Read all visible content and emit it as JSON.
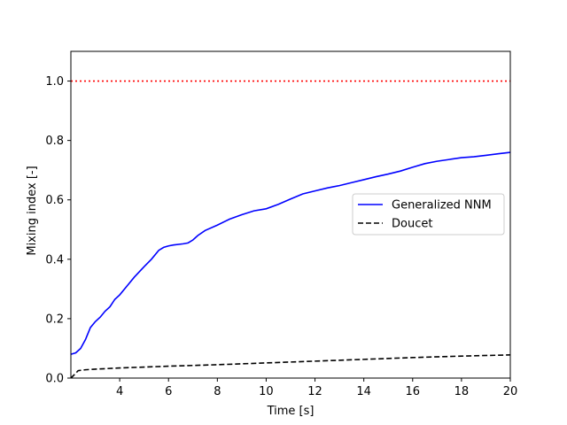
{
  "chart_data": {
    "type": "line",
    "title": "",
    "xlabel": "Time [s]",
    "ylabel": "Mixing index [-]",
    "xlim": [
      2,
      20
    ],
    "ylim": [
      0.0,
      1.1
    ],
    "xticks": [
      4,
      6,
      8,
      10,
      12,
      14,
      16,
      18,
      20
    ],
    "xtick_labels": [
      "4",
      "6",
      "8",
      "10",
      "12",
      "14",
      "16",
      "18",
      "20"
    ],
    "yticks": [
      0.0,
      0.2,
      0.4,
      0.6,
      0.8,
      1.0
    ],
    "ytick_labels": [
      "0.0",
      "0.2",
      "0.4",
      "0.6",
      "0.8",
      "1.0"
    ],
    "grid": false,
    "legend_position": "center-right",
    "series": [
      {
        "name": "Generalized NNM",
        "color": "#0000ff",
        "style": "solid",
        "x": [
          2.0,
          2.2,
          2.4,
          2.6,
          2.8,
          3.0,
          3.2,
          3.4,
          3.6,
          3.8,
          4.0,
          4.3,
          4.6,
          5.0,
          5.3,
          5.6,
          5.8,
          6.0,
          6.2,
          6.6,
          6.8,
          7.0,
          7.2,
          7.5,
          8.0,
          8.5,
          9.0,
          9.5,
          10.0,
          10.5,
          11.0,
          11.5,
          12.0,
          12.5,
          13.0,
          13.5,
          14.0,
          14.5,
          15.0,
          15.5,
          16.0,
          16.5,
          17.0,
          17.5,
          18.0,
          18.5,
          19.0,
          19.5,
          20.0
        ],
        "y": [
          0.08,
          0.085,
          0.1,
          0.13,
          0.17,
          0.19,
          0.205,
          0.225,
          0.24,
          0.265,
          0.28,
          0.31,
          0.34,
          0.375,
          0.4,
          0.43,
          0.44,
          0.445,
          0.448,
          0.452,
          0.455,
          0.465,
          0.48,
          0.497,
          0.515,
          0.535,
          0.55,
          0.563,
          0.57,
          0.585,
          0.603,
          0.62,
          0.63,
          0.64,
          0.648,
          0.658,
          0.668,
          0.678,
          0.687,
          0.697,
          0.71,
          0.722,
          0.73,
          0.736,
          0.742,
          0.745,
          0.75,
          0.755,
          0.76
        ]
      },
      {
        "name": "Doucet",
        "color": "#000000",
        "style": "dashed",
        "x": [
          2.0,
          2.15,
          2.3,
          2.6,
          3.0,
          4.0,
          6.0,
          8.0,
          10.0,
          12.0,
          14.0,
          16.0,
          18.0,
          20.0
        ],
        "y": [
          0.0,
          0.012,
          0.025,
          0.028,
          0.03,
          0.034,
          0.04,
          0.045,
          0.051,
          0.057,
          0.063,
          0.069,
          0.074,
          0.078
        ]
      },
      {
        "name": "",
        "color": "#ff0000",
        "style": "dotted",
        "x": [
          2.0,
          20.0
        ],
        "y": [
          1.0,
          1.0
        ]
      }
    ]
  }
}
